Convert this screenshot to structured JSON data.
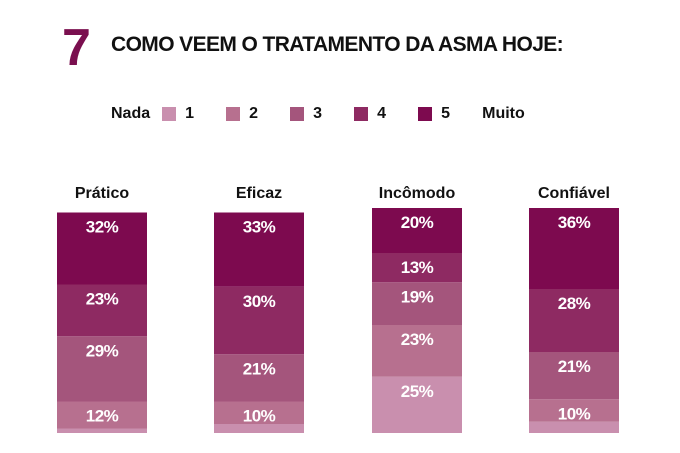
{
  "title": {
    "number": "7",
    "text": "COMO VEEM O TRATAMENTO DA ASMA HOJE:"
  },
  "legend": {
    "low_label": "Nada",
    "high_label": "Muito",
    "levels": [
      {
        "label": "1",
        "color": "#c98fae"
      },
      {
        "label": "2",
        "color": "#b7708f"
      },
      {
        "label": "3",
        "color": "#a4557c"
      },
      {
        "label": "4",
        "color": "#8e2a62"
      },
      {
        "label": "5",
        "color": "#7d0a4f"
      }
    ]
  },
  "chart_data": {
    "type": "bar",
    "stacked": true,
    "orientation": "vertical",
    "categories": [
      "Prático",
      "Eficaz",
      "Incômodo",
      "Confiável"
    ],
    "ylim": [
      0,
      100
    ],
    "grid": false,
    "legend_position": "top",
    "series": [
      {
        "name": "1",
        "color": "#c98fae",
        "values": [
          2,
          4,
          25,
          5
        ],
        "labels": [
          "",
          "",
          "25%",
          ""
        ]
      },
      {
        "name": "2",
        "color": "#b7708f",
        "values": [
          12,
          10,
          23,
          10
        ],
        "labels": [
          "12%",
          "10%",
          "23%",
          "10%"
        ]
      },
      {
        "name": "3",
        "color": "#a4557c",
        "values": [
          29,
          21,
          19,
          21
        ],
        "labels": [
          "29%",
          "21%",
          "19%",
          "21%"
        ]
      },
      {
        "name": "4",
        "color": "#8e2a62",
        "values": [
          23,
          30,
          13,
          28
        ],
        "labels": [
          "23%",
          "30%",
          "13%",
          "28%"
        ]
      },
      {
        "name": "5",
        "color": "#7d0a4f",
        "values": [
          32,
          33,
          20,
          36
        ],
        "labels": [
          "32%",
          "33%",
          "20%",
          "36%"
        ]
      }
    ]
  }
}
